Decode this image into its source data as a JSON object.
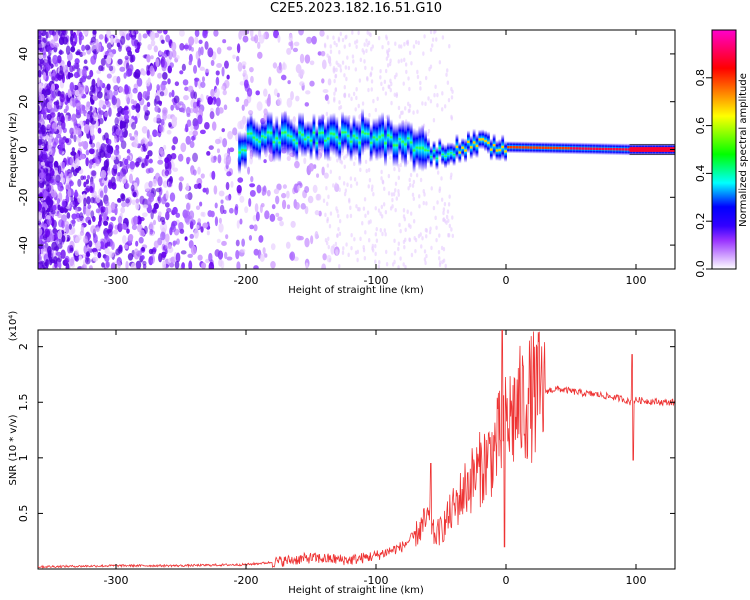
{
  "title": "C2E5.2023.182.16.51.G10",
  "chart_data": [
    {
      "type": "heatmap",
      "title": "C2E5.2023.182.16.51.G10",
      "xlabel": "Height of straight line (km)",
      "ylabel": "Frequency (Hz)",
      "xlim": [
        -360,
        130
      ],
      "ylim": [
        -50,
        50
      ],
      "x_ticks": [
        -300,
        -200,
        -100,
        0,
        100
      ],
      "y_ticks": [
        -40,
        -20,
        0,
        20,
        40
      ],
      "colorbar": {
        "label": "Normalized spectral amplitude",
        "range": [
          0,
          1
        ],
        "ticks": [
          0.0,
          0.2,
          0.4,
          0.6,
          0.8
        ],
        "colormap": [
          "#ffffff",
          "#cc99ff",
          "#9933ff",
          "#6600ff",
          "#0000ff",
          "#00ffff",
          "#00ff00",
          "#ffff00",
          "#ff6600",
          "#ff0000",
          "#ff00cc"
        ]
      },
      "ridge": [
        {
          "x": -200,
          "f": 6.0
        },
        {
          "x": -170,
          "f": 5.0
        },
        {
          "x": -140,
          "f": 5.0
        },
        {
          "x": -110,
          "f": 5.0
        },
        {
          "x": -85,
          "f": 4.0
        },
        {
          "x": -70,
          "f": 2.0
        },
        {
          "x": -60,
          "f": -2.0
        },
        {
          "x": -50,
          "f": -1.0
        },
        {
          "x": -40,
          "f": 0.0
        },
        {
          "x": -20,
          "f": 2.0
        },
        {
          "x": 0,
          "f": 1.0
        },
        {
          "x": 50,
          "f": 0.5
        },
        {
          "x": 95,
          "f": 0.0
        },
        {
          "x": 130,
          "f": 0.0
        }
      ]
    },
    {
      "type": "line",
      "xlabel": "Height of straight line (km)",
      "ylabel": "SNR (10 * v/v)",
      "y_scale_label": "(x10⁴)",
      "xlim": [
        -360,
        130
      ],
      "ylim": [
        0,
        2.15
      ],
      "x_ticks": [
        -300,
        -200,
        -100,
        0,
        100
      ],
      "y_ticks": [
        0.5,
        1.0,
        1.5,
        2.0
      ],
      "color": "#ee3333",
      "series": [
        {
          "x": [
            -360,
            -300,
            -250,
            -200,
            -180,
            -150,
            -120,
            -100,
            -80,
            -70,
            -60,
            -55,
            -50,
            -40,
            -30,
            -20,
            -10,
            0,
            10,
            20,
            30,
            40,
            50,
            60,
            70,
            80,
            90,
            95,
            100,
            110,
            120,
            130
          ],
          "values": [
            0.02,
            0.03,
            0.03,
            0.04,
            0.06,
            0.1,
            0.08,
            0.12,
            0.2,
            0.3,
            0.45,
            0.3,
            0.35,
            0.55,
            0.75,
            0.9,
            1.05,
            1.3,
            1.45,
            1.55,
            1.6,
            1.62,
            1.6,
            1.58,
            1.57,
            1.55,
            1.53,
            1.5,
            1.52,
            1.51,
            1.5,
            1.5
          ]
        }
      ],
      "spikes": [
        {
          "x": -58,
          "y": 0.95
        },
        {
          "x": -3,
          "y": 2.15
        },
        {
          "x": -1,
          "y": 0.2
        },
        {
          "x": 97,
          "y": 1.93
        },
        {
          "x": 98,
          "y": 0.98
        }
      ]
    }
  ]
}
